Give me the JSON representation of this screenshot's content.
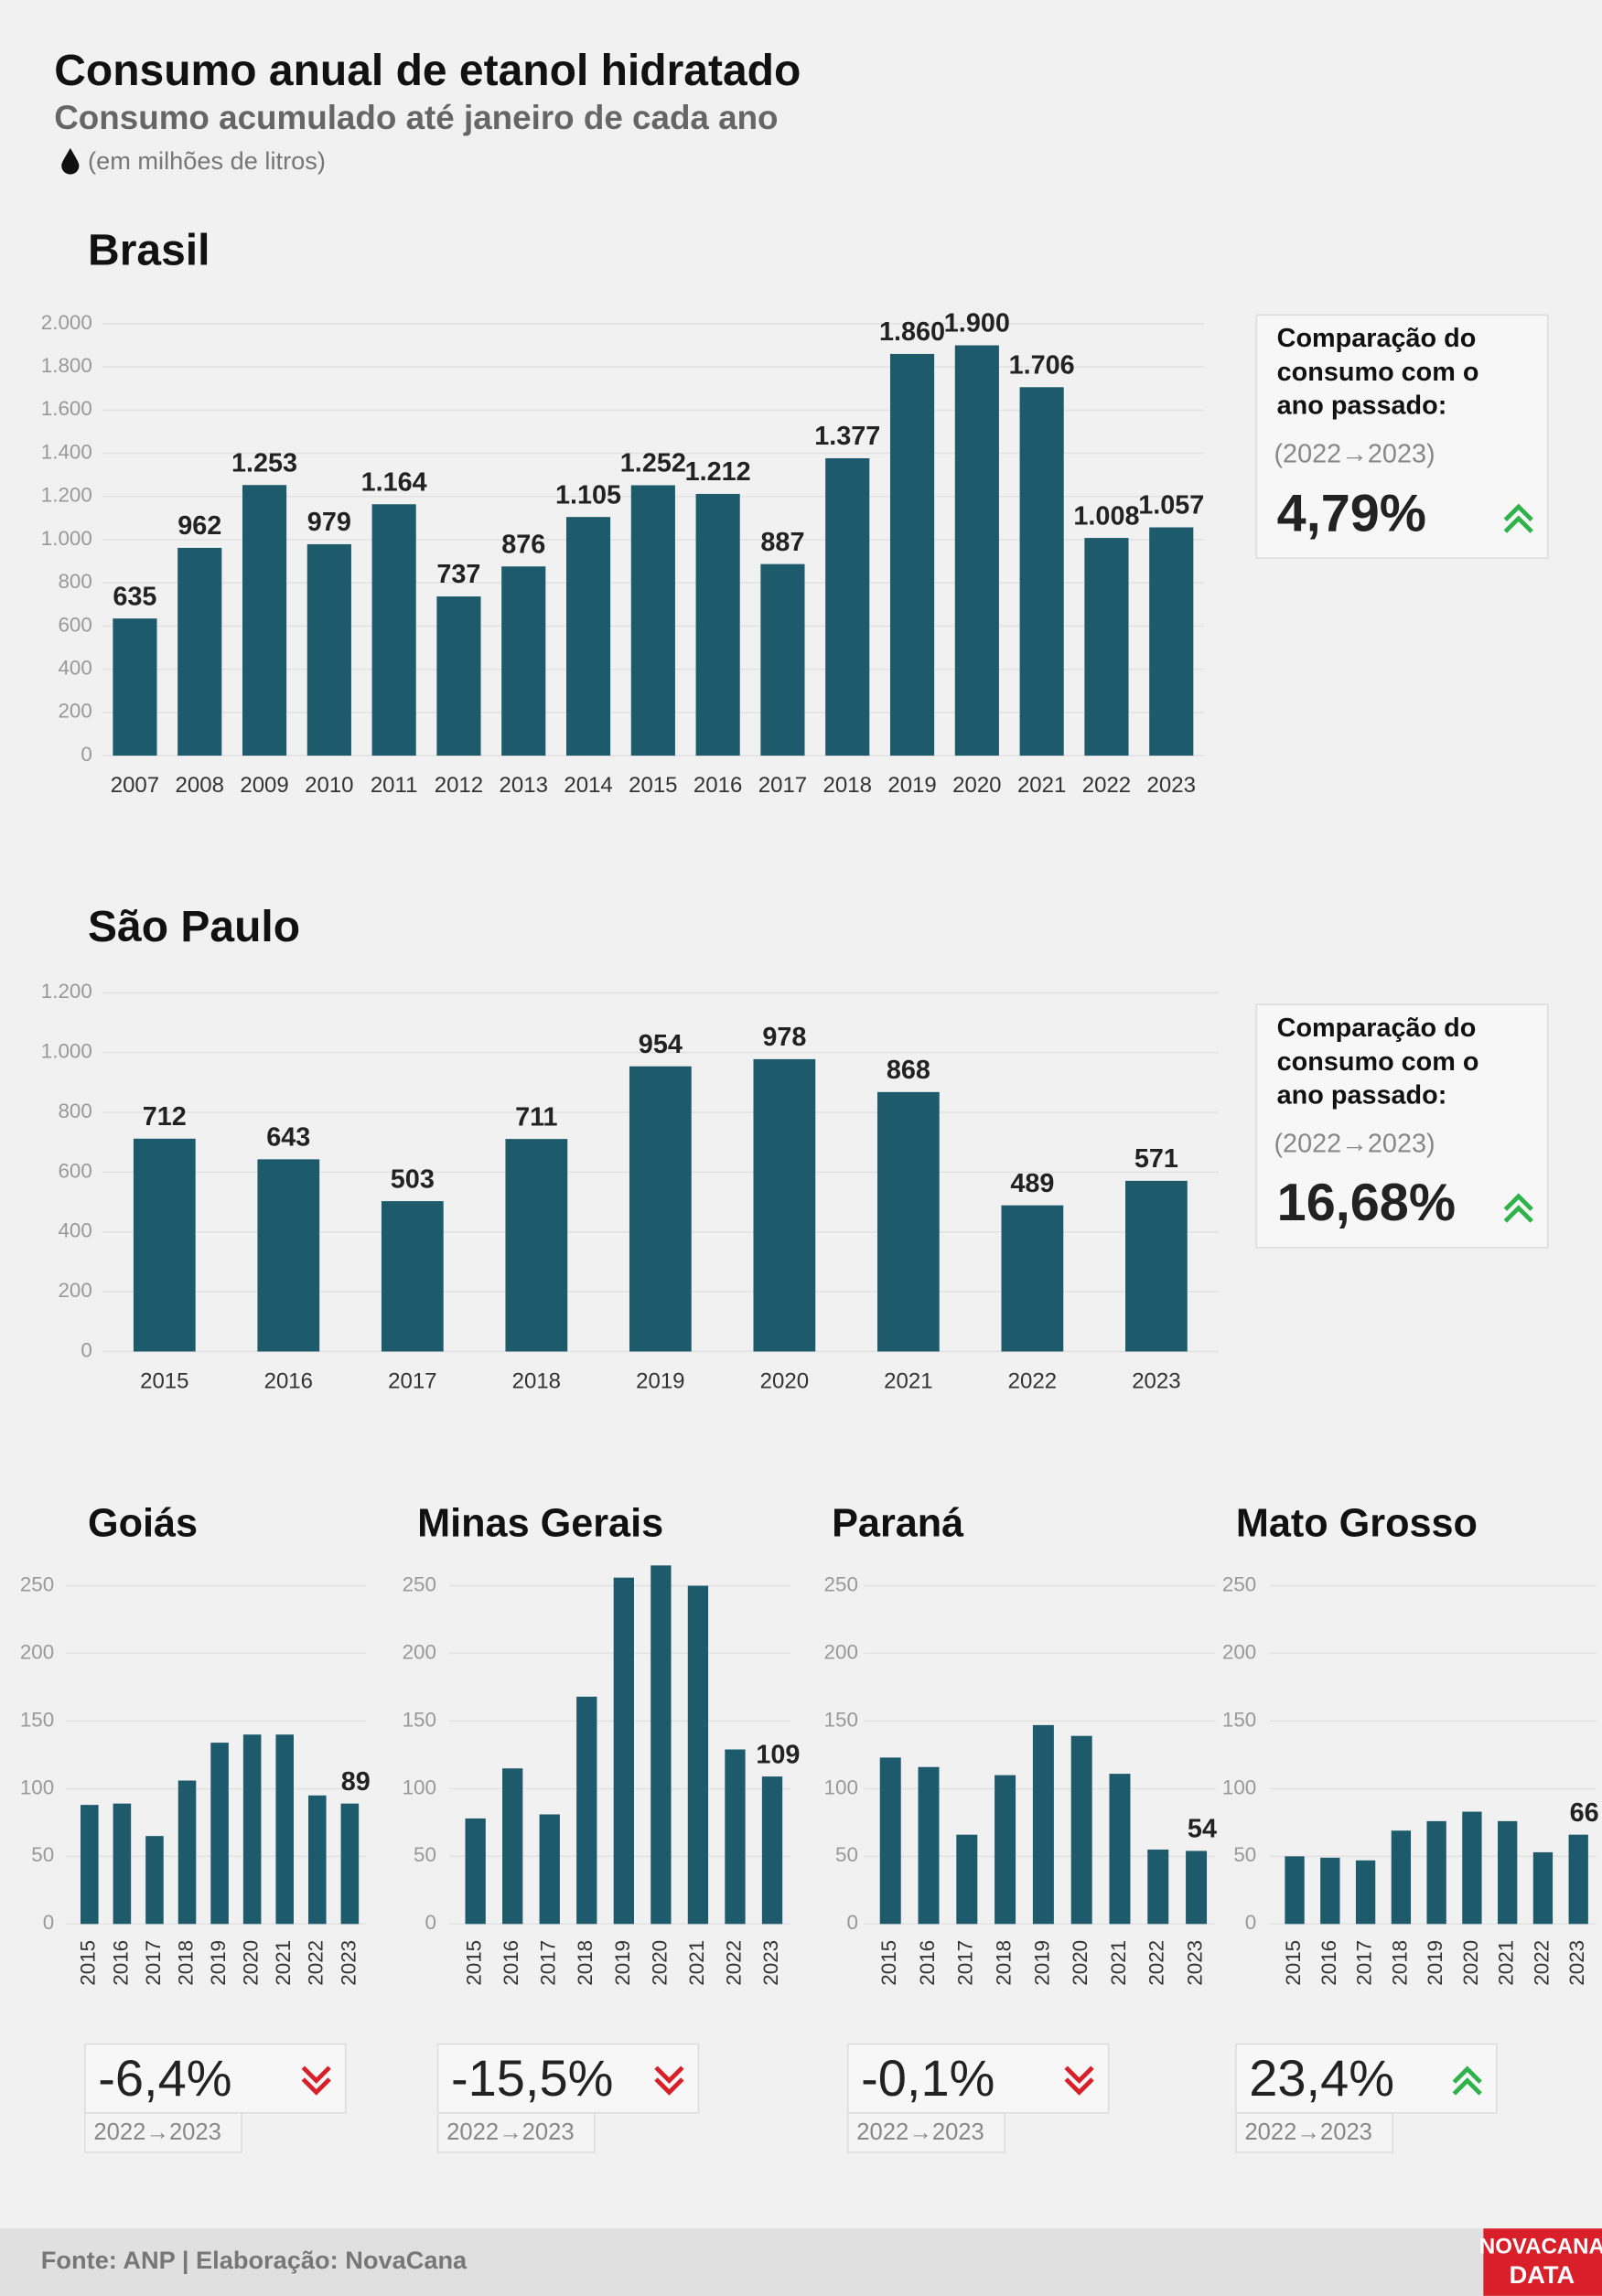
{
  "title": "Consumo anual de etanol hidratado",
  "subtitle": "Consumo acumulado até janeiro de cada ano",
  "unit_note": "(em milhões de litros)",
  "source": "Fonte: ANP | Elaboração: NovaCana",
  "logo": [
    "NOVACANA",
    "DATA"
  ],
  "chart_data": [
    {
      "type": "bar",
      "title": "Brasil",
      "color": "#1d5a6c",
      "grid": true,
      "data_labels": "all",
      "categories": [
        "2007",
        "2008",
        "2009",
        "2010",
        "2011",
        "2012",
        "2013",
        "2014",
        "2015",
        "2016",
        "2017",
        "2018",
        "2019",
        "2020",
        "2021",
        "2022",
        "2023"
      ],
      "values": [
        635,
        962,
        1253,
        979,
        1164,
        737,
        876,
        1105,
        1252,
        1212,
        887,
        1377,
        1860,
        1900,
        1706,
        1008,
        1057
      ],
      "value_labels": [
        "635",
        "962",
        "1.253",
        "979",
        "1.164",
        "737",
        "876",
        "1.105",
        "1.252",
        "1.212",
        "887",
        "1.377",
        "1.860",
        "1.900",
        "1.706",
        "1.008",
        "1.057"
      ],
      "ylim": [
        0,
        2000
      ],
      "yticks": [
        0,
        200,
        400,
        600,
        800,
        {
          "value": 1000,
          "label": "1.000"
        },
        {
          "value": 1200,
          "label": "1.200"
        },
        {
          "value": 1400,
          "label": "1.400"
        },
        {
          "value": 1600,
          "label": "1.600"
        },
        {
          "value": 1800,
          "label": "1.800"
        },
        {
          "value": 2000,
          "label": "2.000"
        }
      ],
      "comparison": {
        "title": [
          "Comparação do",
          "consumo com o",
          "ano passado:"
        ],
        "period": "(2022→2023)",
        "change": {
          "value": 4.79,
          "label": "4,79%"
        }
      }
    },
    {
      "type": "bar",
      "title": "São Paulo",
      "color": "#1d5a6c",
      "grid": true,
      "data_labels": "all",
      "categories": [
        "2015",
        "2016",
        "2017",
        "2018",
        "2019",
        "2020",
        "2021",
        "2022",
        "2023"
      ],
      "values": [
        712,
        643,
        503,
        711,
        954,
        978,
        868,
        489,
        571
      ],
      "ylim": [
        0,
        1200
      ],
      "yticks": [
        0,
        200,
        400,
        600,
        800,
        {
          "value": 1000,
          "label": "1.000"
        },
        {
          "value": 1200,
          "label": "1.200"
        }
      ],
      "comparison": {
        "title": [
          "Comparação do",
          "consumo com o",
          "ano passado:"
        ],
        "period": "(2022→2023)",
        "change": {
          "value": 16.68,
          "label": "16,68%"
        }
      }
    },
    {
      "type": "bar",
      "title": "Goiás",
      "color": "#1d5a6c",
      "grid": true,
      "data_labels": "last",
      "categories": [
        "2015",
        "2016",
        "2017",
        "2018",
        "2019",
        "2020",
        "2021",
        "2022",
        "2023"
      ],
      "values": [
        88,
        89,
        65,
        106,
        134,
        140,
        140,
        95,
        89
      ],
      "ylim": [
        0,
        270
      ],
      "yticks": [
        0,
        50,
        100,
        150,
        200,
        250
      ],
      "comparison": {
        "period": "2022→2023",
        "change": {
          "value": -6.4,
          "label": "-6,4%"
        }
      }
    },
    {
      "type": "bar",
      "title": "Minas Gerais",
      "color": "#1d5a6c",
      "grid": true,
      "data_labels": "last",
      "categories": [
        "2015",
        "2016",
        "2017",
        "2018",
        "2019",
        "2020",
        "2021",
        "2022",
        "2023"
      ],
      "values": [
        78,
        115,
        81,
        168,
        256,
        265,
        250,
        129,
        109
      ],
      "ylim": [
        0,
        270
      ],
      "yticks": [
        0,
        50,
        100,
        150,
        200,
        250
      ],
      "comparison": {
        "period": "2022→2023",
        "change": {
          "value": -15.5,
          "label": "-15,5%"
        }
      }
    },
    {
      "type": "bar",
      "title": "Paraná",
      "color": "#1d5a6c",
      "grid": true,
      "data_labels": "last",
      "categories": [
        "2015",
        "2016",
        "2017",
        "2018",
        "2019",
        "2020",
        "2021",
        "2022",
        "2023"
      ],
      "values": [
        123,
        116,
        66,
        110,
        147,
        139,
        111,
        55,
        54
      ],
      "ylim": [
        0,
        270
      ],
      "yticks": [
        0,
        50,
        100,
        150,
        200,
        250
      ],
      "comparison": {
        "period": "2022→2023",
        "change": {
          "value": -0.1,
          "label": "-0,1%"
        }
      }
    },
    {
      "type": "bar",
      "title": "Mato Grosso",
      "color": "#1d5a6c",
      "grid": true,
      "data_labels": "last",
      "categories": [
        "2015",
        "2016",
        "2017",
        "2018",
        "2019",
        "2020",
        "2021",
        "2022",
        "2023"
      ],
      "values": [
        50,
        49,
        47,
        69,
        76,
        83,
        76,
        53,
        66
      ],
      "ylim": [
        0,
        270
      ],
      "yticks": [
        0,
        50,
        100,
        150,
        200,
        250
      ],
      "comparison": {
        "period": "2022→2023",
        "change": {
          "value": 23.4,
          "label": "23,4%"
        }
      }
    }
  ]
}
